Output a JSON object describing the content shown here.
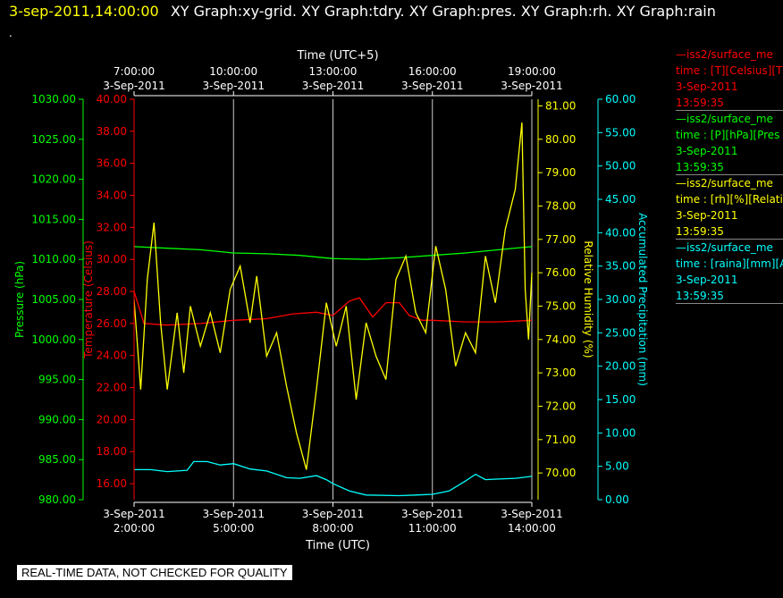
{
  "header": {
    "timestamp": "3-sep-2011,14:00:00",
    "graphs": "XY Graph:xy-grid.  XY Graph:tdry.  XY Graph:pres.  XY Graph:rh.  XY Graph:rain",
    "dot": "."
  },
  "footer": {
    "note": "REAL-TIME DATA, NOT CHECKED FOR QUALITY"
  },
  "legend": [
    {
      "line1": "—iss2/surface_me",
      "line2": "time : [T][Celsius][T",
      "line3": "3-Sep-2011",
      "line4": "13:59:35",
      "color": "#ff0000"
    },
    {
      "line1": "—iss2/surface_me",
      "line2": "time : [P][hPa][Pres",
      "line3": "3-Sep-2011",
      "line4": "13:59:35",
      "color": "#00ff00"
    },
    {
      "line1": "—iss2/surface_me",
      "line2": "time : [rh][%][Relati",
      "line3": "3-Sep-2011",
      "line4": "13:59:35",
      "color": "#ffff00"
    },
    {
      "line1": "—iss2/surface_me",
      "line2": "time : [raina][mm][A",
      "line3": "3-Sep-2011",
      "line4": "13:59:35",
      "color": "#00ffff"
    }
  ],
  "chart_data": {
    "type": "line",
    "xlabel": "Time (UTC)",
    "x2label": "Time (UTC+5)",
    "xlim": [
      2.0,
      14.0
    ],
    "bottom_ticks": [
      {
        "x": 2,
        "date": "3-Sep-2011",
        "time": "2:00:00"
      },
      {
        "x": 5,
        "date": "3-Sep-2011",
        "time": "5:00:00"
      },
      {
        "x": 8,
        "date": "3-Sep-2011",
        "time": "8:00:00"
      },
      {
        "x": 11,
        "date": "3-Sep-2011",
        "time": "11:00:00"
      },
      {
        "x": 14,
        "date": "3-Sep-2011",
        "time": "14:00:00"
      }
    ],
    "top_ticks": [
      {
        "x": 2,
        "time": "7:00:00",
        "date": "3-Sep-2011"
      },
      {
        "x": 5,
        "time": "10:00:00",
        "date": "3-Sep-2011"
      },
      {
        "x": 8,
        "time": "13:00:00",
        "date": "3-Sep-2011"
      },
      {
        "x": 11,
        "time": "16:00:00",
        "date": "3-Sep-2011"
      },
      {
        "x": 14,
        "time": "19:00:00",
        "date": "3-Sep-2011"
      }
    ],
    "vertical_gridlines_x": [
      5,
      8,
      11,
      14
    ],
    "axes": {
      "pressure": {
        "label": "Pressure (hPa)",
        "color": "#00ff00",
        "ylim": [
          980,
          1030
        ],
        "ticks": [
          "980.00",
          "985.00",
          "990.00",
          "995.00",
          "1000.00",
          "1005.00",
          "1010.00",
          "1015.00",
          "1020.00",
          "1025.00",
          "1030.00"
        ]
      },
      "temperature": {
        "label": "Temperature (Celsius)",
        "color": "#ff0000",
        "ylim": [
          15,
          40
        ],
        "ticks": [
          "16.00",
          "18.00",
          "20.00",
          "22.00",
          "24.00",
          "26.00",
          "28.00",
          "30.00",
          "32.00",
          "34.00",
          "36.00",
          "38.00",
          "40.00"
        ]
      },
      "humidity": {
        "label": "Relative Humidity (%)",
        "color": "#ffff00",
        "ylim": [
          69.2,
          81.2
        ],
        "ticks": [
          "70.00",
          "71.00",
          "72.00",
          "73.00",
          "74.00",
          "75.00",
          "76.00",
          "77.00",
          "78.00",
          "79.00",
          "80.00",
          "81.00"
        ]
      },
      "precip": {
        "label": "Accumulated Precipitation (mm)",
        "color": "#00ffff",
        "ylim": [
          0,
          60
        ],
        "ticks": [
          "0.00",
          "5.00",
          "10.00",
          "15.00",
          "20.00",
          "25.00",
          "30.00",
          "35.00",
          "40.00",
          "45.00",
          "50.00",
          "55.00",
          "60.00"
        ]
      }
    },
    "series": [
      {
        "name": "iss2/surface_me time : [P][hPa][Pres",
        "axis": "pressure",
        "color": "#00ff00",
        "x": [
          2.0,
          3.0,
          4.0,
          5.0,
          6.0,
          7.0,
          8.0,
          9.0,
          10.0,
          11.0,
          12.0,
          13.0,
          14.0
        ],
        "y": [
          1011.6,
          1011.4,
          1011.2,
          1010.8,
          1010.7,
          1010.5,
          1010.1,
          1010.0,
          1010.2,
          1010.5,
          1010.8,
          1011.2,
          1011.6
        ]
      },
      {
        "name": "iss2/surface_me time : [T][Celsius][T",
        "axis": "temperature",
        "color": "#ff0000",
        "x": [
          2.0,
          2.3,
          3.0,
          4.0,
          5.0,
          6.0,
          6.8,
          7.5,
          8.0,
          8.5,
          8.8,
          9.2,
          9.6,
          10.0,
          10.3,
          10.7,
          11.0,
          12.0,
          13.0,
          14.0
        ],
        "y": [
          28.0,
          26.0,
          25.9,
          26.0,
          26.2,
          26.3,
          26.6,
          26.7,
          26.5,
          27.4,
          27.6,
          26.4,
          27.3,
          27.3,
          26.5,
          26.2,
          26.2,
          26.1,
          26.1,
          26.2
        ]
      },
      {
        "name": "iss2/surface_me time : [rh][%][Relati",
        "axis": "humidity",
        "color": "#ffff00",
        "x": [
          2.0,
          2.2,
          2.4,
          2.6,
          2.8,
          3.0,
          3.3,
          3.5,
          3.7,
          4.0,
          4.3,
          4.6,
          4.9,
          5.2,
          5.5,
          5.7,
          6.0,
          6.3,
          6.6,
          6.9,
          7.2,
          7.5,
          7.8,
          8.1,
          8.4,
          8.7,
          9.0,
          9.3,
          9.6,
          9.9,
          10.2,
          10.5,
          10.8,
          11.1,
          11.4,
          11.7,
          12.0,
          12.3,
          12.6,
          12.9,
          13.2,
          13.5,
          13.7,
          13.8,
          13.9,
          14.0
        ],
        "y": [
          75.2,
          72.5,
          75.8,
          77.5,
          74.5,
          72.5,
          74.8,
          73.0,
          75.0,
          73.8,
          74.8,
          73.6,
          75.5,
          76.2,
          74.5,
          75.9,
          73.5,
          74.2,
          72.6,
          71.2,
          70.1,
          72.5,
          75.1,
          73.8,
          75.0,
          72.2,
          74.5,
          73.5,
          72.8,
          75.8,
          76.5,
          74.8,
          74.2,
          76.8,
          75.5,
          73.2,
          74.2,
          73.6,
          76.5,
          75.1,
          77.3,
          78.5,
          80.5,
          75.5,
          74.0,
          76.0
        ]
      },
      {
        "name": "iss2/surface_me time : [raina][mm][A",
        "axis": "precip",
        "color": "#00ffff",
        "x": [
          2.0,
          2.5,
          3.0,
          3.6,
          3.8,
          4.2,
          4.6,
          5.0,
          5.5,
          6.0,
          6.6,
          7.0,
          7.5,
          7.8,
          8.0,
          8.5,
          9.0,
          10.0,
          10.5,
          11.0,
          11.5,
          12.0,
          12.3,
          12.6,
          13.0,
          13.5,
          14.0
        ],
        "y": [
          4.5,
          4.5,
          4.2,
          4.4,
          5.7,
          5.7,
          5.2,
          5.4,
          4.6,
          4.3,
          3.3,
          3.2,
          3.6,
          3.0,
          2.4,
          1.3,
          0.7,
          0.6,
          0.7,
          0.8,
          1.3,
          2.8,
          3.8,
          3.0,
          3.1,
          3.2,
          3.5
        ]
      }
    ]
  }
}
